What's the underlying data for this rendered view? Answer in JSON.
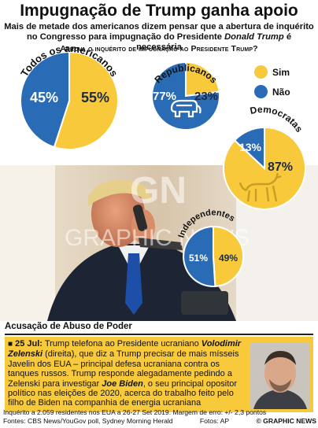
{
  "header": {
    "title": "Impugnação de Trump ganha apoio",
    "subtitle_line1": "Mais de metade dos americanos dizem pensar que a abertura de inquérito",
    "subtitle_line2_prefix": "no Congresso para impugnação do Presidente ",
    "subtitle_line2_name": "Donald Trump",
    "subtitle_line2_suffix": " é necessária",
    "question": "Aprova o inquérito de impugnação ao Presidente Trump?"
  },
  "colors": {
    "yes": "#f7c93b",
    "no": "#2a6bb5",
    "accent": "#f7c93b"
  },
  "legend": {
    "yes_label": "Sim",
    "no_label": "Não"
  },
  "chart_data": {
    "type": "pie",
    "series": [
      {
        "name": "Todos os americanos",
        "values": [
          55,
          45
        ],
        "labels": [
          "55%",
          "45%"
        ]
      },
      {
        "name": "Republicanos",
        "values": [
          23,
          77
        ],
        "labels": [
          "23%",
          "77%"
        ]
      },
      {
        "name": "Democratas",
        "values": [
          87,
          13
        ],
        "labels": [
          "87%",
          "13%"
        ]
      },
      {
        "name": "Independentes",
        "values": [
          49,
          51
        ],
        "labels": [
          "49%",
          "51%"
        ]
      }
    ],
    "categories": [
      "Sim",
      "Não"
    ]
  },
  "section": {
    "title": "Acusação de Abuso de Poder"
  },
  "story": {
    "date": "25 Jul:",
    "p1": " Trump telefona ao Presidente ucraniano ",
    "name1": "Volodimir Zelenski",
    "p2": " (direita), que diz a Trump precisar de mais mísseis Javelin dos EUA – principal defesa ucraniana contra os tanques russos. Trump responde alegadamente pedindo a Zelenski para investigar ",
    "name2": "Joe Biden",
    "p3": ", o seu principal opositor político nas eleições de 2020, acerca do trabalho feito pelo filho de Biden na companhia de energia ucraniana"
  },
  "watermark": {
    "big": "GN",
    "text": "GRAPHIC NEWS"
  },
  "footer": {
    "line1": "Inquérito a 2.059 residentes nos EUA a 26-27 Set 2019. Margem de erro: +/- 2,3 pontos",
    "sources": "Fontes: CBS News/YouGov poll, Sydney Morning Herald",
    "photos": "Fotos: AP",
    "brand": "© GRAPHIC NEWS"
  }
}
